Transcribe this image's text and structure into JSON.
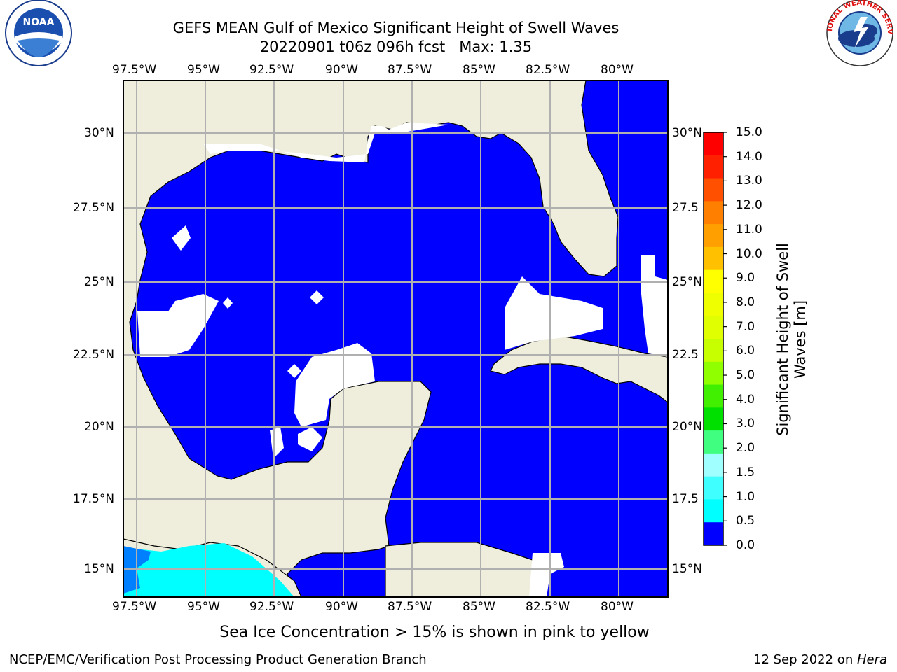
{
  "title_line1": "GEFS MEAN Gulf of Mexico Significant Height of Swell Waves",
  "title_line2": "20220901 t06z 096h fcst   Max: 1.35",
  "logos": {
    "left": "NOAA",
    "left_ring": "NATIONAL OCEANIC AND ATMOSPHERIC ADMINISTRATION · U.S. DEPARTMENT OF COMMERCE",
    "right_ring": "NATIONAL WEATHER SERVICE"
  },
  "map": {
    "lon_ticks": [
      "97.5°W",
      "95°W",
      "92.5°W",
      "90°W",
      "87.5°W",
      "85°W",
      "82.5°W",
      "80°W"
    ],
    "lat_ticks_left": [
      "30°N",
      "27.5°N",
      "25°N",
      "22.5°N",
      "20°N",
      "17.5°N",
      "15°N"
    ],
    "lat_ticks_right": [
      "30°N",
      "27.5",
      "25°N",
      "22.5",
      "20°N",
      "17.5",
      "15°N"
    ],
    "colors": {
      "land": "#efeedc",
      "water_low": "#0000ff",
      "water_mid": "#0080ff",
      "water_high": "#00ffff",
      "grid": "#b0b0b0"
    }
  },
  "colorbar": {
    "label_line1": "Significant Height of Swell",
    "label_line2": "Waves [m]",
    "ticks": [
      "15.0",
      "14.0",
      "13.0",
      "12.0",
      "11.0",
      "10.0",
      "9.0",
      "8.0",
      "7.0",
      "6.0",
      "5.0",
      "4.0",
      "3.0",
      "2.0",
      "1.5",
      "1.0",
      "0.5",
      "0.0"
    ],
    "colors": [
      "#ff0000",
      "#ff2000",
      "#ff5000",
      "#ff8000",
      "#ffa000",
      "#ffc000",
      "#ffff00",
      "#f0ff00",
      "#e0ff00",
      "#c8ff00",
      "#90ff00",
      "#40f000",
      "#00e000",
      "#40ff80",
      "#a0ffff",
      "#40ffff",
      "#00ffff",
      "#0080ff",
      "#0000ff"
    ]
  },
  "caption": "Sea Ice Concentration > 15% is shown in pink to yellow",
  "footer_left": "NCEP/EMC/Verification Post Processing Product Generation Branch",
  "footer_right_date": "12 Sep 2022 on ",
  "footer_right_host": "Hera"
}
